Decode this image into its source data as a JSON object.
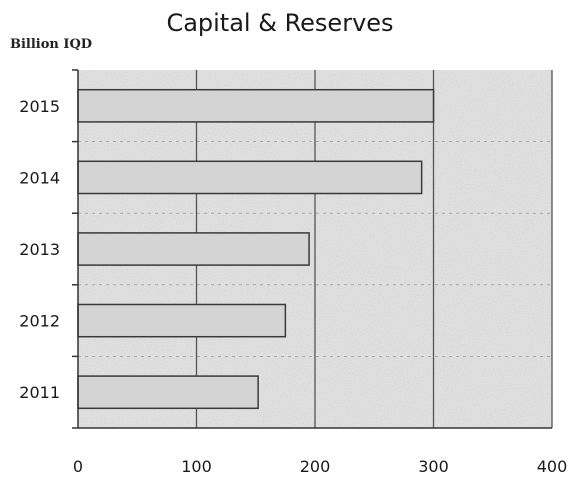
{
  "chart_data": {
    "type": "bar",
    "orientation": "horizontal",
    "title": "Capital & Reserves",
    "unit_label": "Billion IQD",
    "categories": [
      "2015",
      "2014",
      "2013",
      "2012",
      "2011"
    ],
    "values": [
      300,
      290,
      195,
      175,
      152
    ],
    "xlim": [
      0,
      400
    ],
    "xticks": [
      "0",
      "100",
      "200",
      "300",
      "400"
    ],
    "grid": true,
    "legend": "none",
    "colors": {
      "bar": "#d4d4d4",
      "bar_edge": "#3a3a3a",
      "plot_background": "#ebebeb",
      "grid": "#555555",
      "axis": "#333333"
    }
  }
}
